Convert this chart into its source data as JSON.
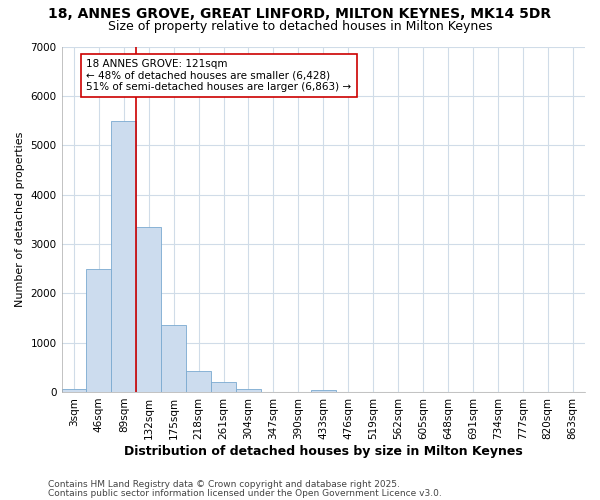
{
  "title1": "18, ANNES GROVE, GREAT LINFORD, MILTON KEYNES, MK14 5DR",
  "title2": "Size of property relative to detached houses in Milton Keynes",
  "xlabel": "Distribution of detached houses by size in Milton Keynes",
  "ylabel": "Number of detached properties",
  "categories": [
    "3sqm",
    "46sqm",
    "89sqm",
    "132sqm",
    "175sqm",
    "218sqm",
    "261sqm",
    "304sqm",
    "347sqm",
    "390sqm",
    "433sqm",
    "476sqm",
    "519sqm",
    "562sqm",
    "605sqm",
    "648sqm",
    "691sqm",
    "734sqm",
    "777sqm",
    "820sqm",
    "863sqm"
  ],
  "values": [
    70,
    2500,
    5500,
    3350,
    1350,
    430,
    200,
    70,
    0,
    0,
    30,
    0,
    0,
    0,
    0,
    0,
    0,
    0,
    0,
    0,
    0
  ],
  "bar_color": "#ccdcee",
  "bar_edge_color": "#7aaad0",
  "vline_color": "#cc0000",
  "vline_pos": 2.5,
  "annotation_text": "18 ANNES GROVE: 121sqm\n← 48% of detached houses are smaller (6,428)\n51% of semi-detached houses are larger (6,863) →",
  "annotation_box_color": "#ffffff",
  "annotation_box_edge": "#cc0000",
  "ylim": [
    0,
    7000
  ],
  "yticks": [
    0,
    1000,
    2000,
    3000,
    4000,
    5000,
    6000,
    7000
  ],
  "footer1": "Contains HM Land Registry data © Crown copyright and database right 2025.",
  "footer2": "Contains public sector information licensed under the Open Government Licence v3.0.",
  "bg_color": "#ffffff",
  "plot_bg_color": "#ffffff",
  "grid_color": "#d0dce8",
  "title_fontsize": 10,
  "subtitle_fontsize": 9,
  "ylabel_fontsize": 8,
  "xlabel_fontsize": 9,
  "tick_fontsize": 7.5,
  "footer_fontsize": 6.5
}
